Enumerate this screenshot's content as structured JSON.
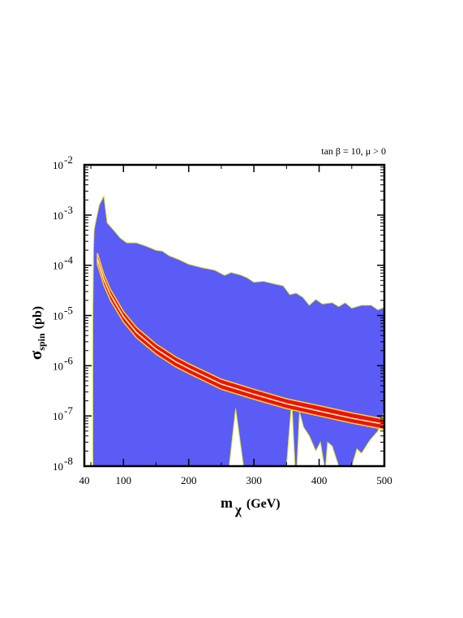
{
  "chart_data": {
    "type": "area",
    "annotation": "tan β = 10, μ > 0",
    "xlabel": {
      "main": "m",
      "sub": "χ",
      "unit": "(GeV)"
    },
    "ylabel": {
      "main": "σ",
      "sub": "spin",
      "unit": "(pb)"
    },
    "xlim": [
      40,
      500
    ],
    "ylim": [
      1e-08,
      0.01
    ],
    "yscale": "log",
    "x_ticks": [
      {
        "value": 40,
        "label": "40"
      },
      {
        "value": 100,
        "label": "100"
      },
      {
        "value": 200,
        "label": "200"
      },
      {
        "value": 300,
        "label": "300"
      },
      {
        "value": 400,
        "label": "400"
      },
      {
        "value": 500,
        "label": "500"
      }
    ],
    "y_ticks": [
      {
        "value": 1e-08,
        "base": "10",
        "exp": "-8"
      },
      {
        "value": 1e-07,
        "base": "10",
        "exp": "-7"
      },
      {
        "value": 1e-06,
        "base": "10",
        "exp": "-6"
      },
      {
        "value": 1e-05,
        "base": "10",
        "exp": "-5"
      },
      {
        "value": 0.0001,
        "base": "10",
        "exp": "-4"
      },
      {
        "value": 0.001,
        "base": "10",
        "exp": "-3"
      },
      {
        "value": 0.01,
        "base": "10",
        "exp": "-2"
      }
    ],
    "colors": {
      "region": "#5a5cf5",
      "region_edge": "#d8e23a",
      "band": "#ee1111",
      "band_edge": "#ffd22a",
      "center_line": "#fff5a0"
    },
    "region_upper": [
      [
        53,
        1e-05
      ],
      [
        54,
        0.0002
      ],
      [
        55,
        0.0005
      ],
      [
        58,
        0.0008
      ],
      [
        63,
        0.0016
      ],
      [
        70,
        0.0024
      ],
      [
        75,
        0.0007
      ],
      [
        85,
        0.0005
      ],
      [
        95,
        0.00035
      ],
      [
        105,
        0.00028
      ],
      [
        120,
        0.00028
      ],
      [
        135,
        0.00024
      ],
      [
        150,
        0.0002
      ],
      [
        160,
        0.00019
      ],
      [
        170,
        0.000155
      ],
      [
        185,
        0.00013
      ],
      [
        200,
        0.000105
      ],
      [
        220,
        9e-05
      ],
      [
        240,
        8e-05
      ],
      [
        255,
        6.3e-05
      ],
      [
        265,
        7.2e-05
      ],
      [
        280,
        6.4e-05
      ],
      [
        290,
        5.6e-05
      ],
      [
        300,
        4.6e-05
      ],
      [
        315,
        4.8e-05
      ],
      [
        330,
        4.3e-05
      ],
      [
        345,
        3.9e-05
      ],
      [
        355,
        2.6e-05
      ],
      [
        365,
        2.8e-05
      ],
      [
        375,
        2.3e-05
      ],
      [
        385,
        1.6e-05
      ],
      [
        395,
        2.1e-05
      ],
      [
        405,
        1.7e-05
      ],
      [
        420,
        1.8e-05
      ],
      [
        430,
        1.5e-05
      ],
      [
        440,
        1.8e-05
      ],
      [
        450,
        1.4e-05
      ],
      [
        465,
        1.6e-05
      ],
      [
        480,
        1.6e-05
      ],
      [
        490,
        1.3e-05
      ],
      [
        500,
        1.45e-05
      ]
    ],
    "region_lower": [
      [
        500,
        1.3e-07
      ],
      [
        490,
        5e-08
      ],
      [
        478,
        3.3e-08
      ],
      [
        465,
        1.8e-08
      ],
      [
        458,
        2.2e-08
      ],
      [
        450,
        1e-08
      ],
      [
        430,
        1e-08
      ],
      [
        420,
        2.5e-08
      ],
      [
        413,
        3e-08
      ],
      [
        410,
        1e-08
      ],
      [
        408,
        1e-08
      ],
      [
        402,
        3e-08
      ],
      [
        395,
        2e-08
      ],
      [
        385,
        4e-08
      ],
      [
        376,
        6e-08
      ],
      [
        370,
        1.2e-07
      ],
      [
        366,
        1e-08
      ],
      [
        363,
        1e-08
      ],
      [
        358,
        2e-07
      ],
      [
        350,
        1e-08
      ],
      [
        284,
        1e-08
      ],
      [
        272,
        1.4e-07
      ],
      [
        262,
        1e-08
      ],
      [
        60,
        1e-08
      ],
      [
        53,
        1e-08
      ]
    ],
    "band": {
      "x": [
        60,
        70,
        80,
        100,
        120,
        150,
        180,
        200,
        250,
        300,
        350,
        400,
        450,
        500
      ],
      "center": [
        0.000135,
        5.2e-05,
        2.6e-05,
        9.5e-06,
        4.6e-06,
        2.15e-06,
        1.2e-06,
        8.8e-07,
        4.3e-07,
        2.7e-07,
        1.75e-07,
        1.25e-07,
        9e-08,
        6.8e-08
      ],
      "upper": [
        0.000175,
        6.6e-05,
        3.3e-05,
        1.2e-05,
        5.8e-06,
        2.7e-06,
        1.5e-06,
        1.1e-06,
        5.4e-07,
        3.4e-07,
        2.2e-07,
        1.6e-07,
        1.15e-07,
        8.6e-08
      ],
      "lower": [
        0.000105,
        4e-05,
        2e-05,
        7.4e-06,
        3.6e-06,
        1.7e-06,
        9.5e-07,
        7e-07,
        3.4e-07,
        2.15e-07,
        1.4e-07,
        1e-07,
        7.2e-08,
        5.4e-08
      ]
    }
  }
}
